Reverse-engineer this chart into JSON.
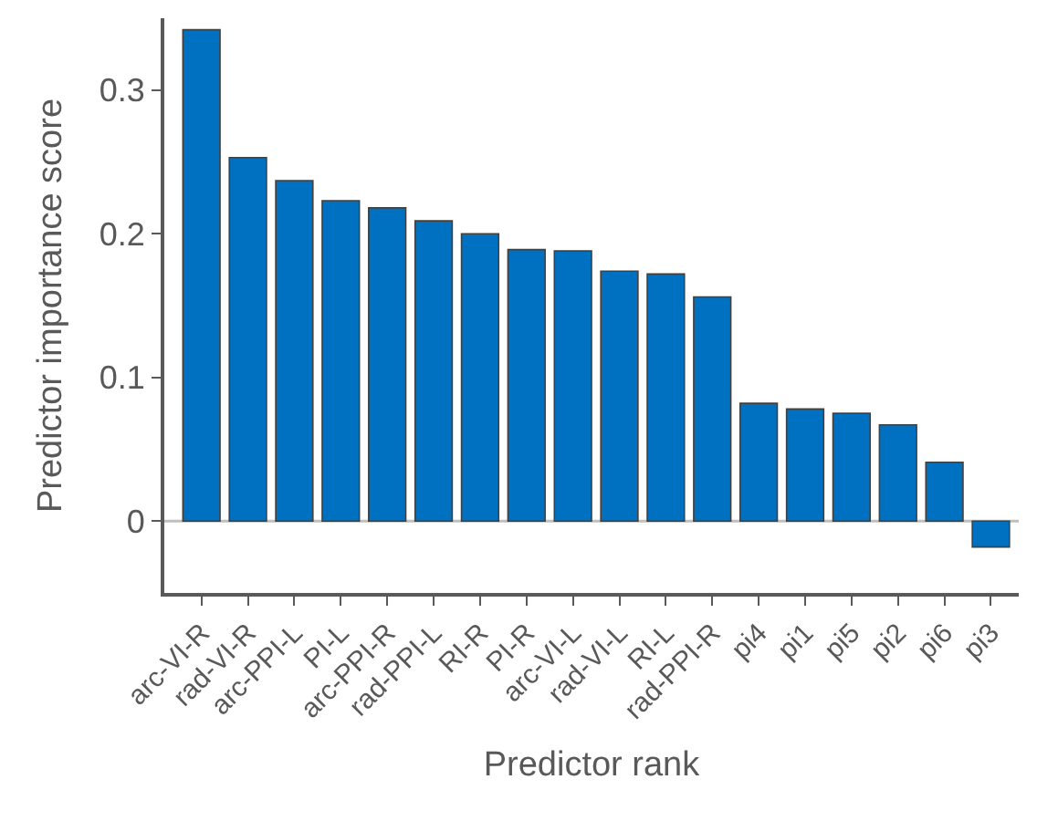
{
  "chart_data": {
    "type": "bar",
    "xlabel": "Predictor rank",
    "ylabel": "Predictor importance score",
    "categories": [
      "arc-VI-R",
      "rad-VI-R",
      "arc-PPI-L",
      "PI-L",
      "arc-PPI-R",
      "rad-PPI-L",
      "RI-R",
      "PI-R",
      "arc-VI-L",
      "rad-VI-L",
      "RI-L",
      "rad-PPI-R",
      "pi4",
      "pi1",
      "pi5",
      "pi2",
      "pi6",
      "pi3"
    ],
    "values": [
      0.342,
      0.253,
      0.237,
      0.223,
      0.218,
      0.209,
      0.2,
      0.189,
      0.188,
      0.174,
      0.172,
      0.156,
      0.082,
      0.078,
      0.075,
      0.067,
      0.041,
      -0.018
    ],
    "color": "#0070c0",
    "ylim": [
      -0.05,
      0.35
    ],
    "yticks": [
      0,
      0.1,
      0.2,
      0.3
    ],
    "ref_lines": [
      {
        "axis": "y",
        "value": 0,
        "color": "#bfbfbf"
      }
    ],
    "grid": false,
    "legend": false
  }
}
